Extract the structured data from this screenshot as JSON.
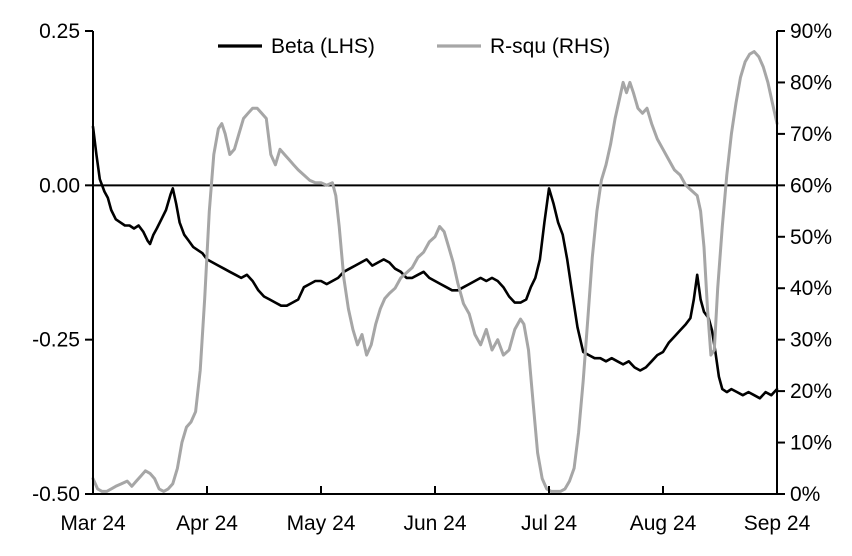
{
  "chart_data": {
    "type": "line",
    "title": "",
    "legend_position": "top-center",
    "grid": false,
    "colors": {
      "beta": "#000000",
      "rsq": "#a6a6a6",
      "axis": "#000000",
      "background": "#ffffff"
    },
    "legend": [
      {
        "label": "Beta (LHS)",
        "color": "#000000"
      },
      {
        "label": "R-squ (RHS)",
        "color": "#a6a6a6"
      }
    ],
    "x_axis": {
      "tick_labels": [
        "Mar 24",
        "Apr 24",
        "May 24",
        "Jun 24",
        "Jul 24",
        "Aug 24",
        "Sep 24"
      ],
      "tick_positions": [
        0,
        1,
        2,
        3,
        4,
        5,
        6
      ],
      "range": [
        0,
        6
      ]
    },
    "left_axis": {
      "tick_labels": [
        "0.25",
        "0.00",
        "-0.25",
        "-0.50"
      ],
      "tick_values": [
        0.25,
        0,
        -0.25,
        -0.5
      ],
      "range": [
        -0.5,
        0.25
      ]
    },
    "right_axis": {
      "tick_labels": [
        "0%",
        "10%",
        "20%",
        "30%",
        "40%",
        "50%",
        "60%",
        "70%",
        "80%",
        "90%"
      ],
      "tick_values": [
        0,
        10,
        20,
        30,
        40,
        50,
        60,
        70,
        80,
        90
      ],
      "range": [
        0,
        90
      ]
    },
    "series": [
      {
        "name": "Beta (LHS)",
        "axis": "left",
        "color": "#000000",
        "width": 2.6,
        "points": [
          [
            0.0,
            0.095
          ],
          [
            0.03,
            0.05
          ],
          [
            0.06,
            0.01
          ],
          [
            0.08,
            0.0
          ],
          [
            0.1,
            -0.01
          ],
          [
            0.13,
            -0.02
          ],
          [
            0.16,
            -0.04
          ],
          [
            0.2,
            -0.055
          ],
          [
            0.24,
            -0.06
          ],
          [
            0.28,
            -0.065
          ],
          [
            0.32,
            -0.065
          ],
          [
            0.36,
            -0.07
          ],
          [
            0.4,
            -0.065
          ],
          [
            0.44,
            -0.075
          ],
          [
            0.48,
            -0.09
          ],
          [
            0.5,
            -0.095
          ],
          [
            0.53,
            -0.08
          ],
          [
            0.56,
            -0.07
          ],
          [
            0.6,
            -0.055
          ],
          [
            0.64,
            -0.04
          ],
          [
            0.68,
            -0.015
          ],
          [
            0.7,
            -0.005
          ],
          [
            0.73,
            -0.03
          ],
          [
            0.76,
            -0.06
          ],
          [
            0.8,
            -0.08
          ],
          [
            0.84,
            -0.09
          ],
          [
            0.88,
            -0.1
          ],
          [
            0.92,
            -0.105
          ],
          [
            0.96,
            -0.11
          ],
          [
            1.0,
            -0.12
          ],
          [
            1.05,
            -0.125
          ],
          [
            1.1,
            -0.13
          ],
          [
            1.15,
            -0.135
          ],
          [
            1.2,
            -0.14
          ],
          [
            1.25,
            -0.145
          ],
          [
            1.3,
            -0.15
          ],
          [
            1.35,
            -0.145
          ],
          [
            1.4,
            -0.155
          ],
          [
            1.45,
            -0.17
          ],
          [
            1.5,
            -0.18
          ],
          [
            1.55,
            -0.185
          ],
          [
            1.6,
            -0.19
          ],
          [
            1.65,
            -0.195
          ],
          [
            1.7,
            -0.195
          ],
          [
            1.75,
            -0.19
          ],
          [
            1.8,
            -0.185
          ],
          [
            1.85,
            -0.165
          ],
          [
            1.9,
            -0.16
          ],
          [
            1.95,
            -0.155
          ],
          [
            2.0,
            -0.155
          ],
          [
            2.05,
            -0.16
          ],
          [
            2.1,
            -0.155
          ],
          [
            2.15,
            -0.15
          ],
          [
            2.2,
            -0.14
          ],
          [
            2.25,
            -0.135
          ],
          [
            2.3,
            -0.13
          ],
          [
            2.35,
            -0.125
          ],
          [
            2.4,
            -0.12
          ],
          [
            2.45,
            -0.13
          ],
          [
            2.5,
            -0.125
          ],
          [
            2.55,
            -0.12
          ],
          [
            2.6,
            -0.125
          ],
          [
            2.65,
            -0.135
          ],
          [
            2.7,
            -0.14
          ],
          [
            2.75,
            -0.15
          ],
          [
            2.8,
            -0.15
          ],
          [
            2.85,
            -0.145
          ],
          [
            2.9,
            -0.14
          ],
          [
            2.95,
            -0.15
          ],
          [
            3.0,
            -0.155
          ],
          [
            3.05,
            -0.16
          ],
          [
            3.1,
            -0.165
          ],
          [
            3.15,
            -0.17
          ],
          [
            3.2,
            -0.17
          ],
          [
            3.25,
            -0.165
          ],
          [
            3.3,
            -0.16
          ],
          [
            3.35,
            -0.155
          ],
          [
            3.4,
            -0.15
          ],
          [
            3.45,
            -0.155
          ],
          [
            3.5,
            -0.15
          ],
          [
            3.55,
            -0.155
          ],
          [
            3.6,
            -0.165
          ],
          [
            3.65,
            -0.18
          ],
          [
            3.7,
            -0.19
          ],
          [
            3.75,
            -0.19
          ],
          [
            3.8,
            -0.185
          ],
          [
            3.84,
            -0.165
          ],
          [
            3.88,
            -0.15
          ],
          [
            3.92,
            -0.12
          ],
          [
            3.96,
            -0.06
          ],
          [
            4.0,
            -0.005
          ],
          [
            4.04,
            -0.03
          ],
          [
            4.08,
            -0.06
          ],
          [
            4.12,
            -0.08
          ],
          [
            4.16,
            -0.12
          ],
          [
            4.2,
            -0.17
          ],
          [
            4.25,
            -0.23
          ],
          [
            4.3,
            -0.27
          ],
          [
            4.35,
            -0.275
          ],
          [
            4.4,
            -0.28
          ],
          [
            4.45,
            -0.28
          ],
          [
            4.5,
            -0.285
          ],
          [
            4.55,
            -0.28
          ],
          [
            4.6,
            -0.285
          ],
          [
            4.65,
            -0.29
          ],
          [
            4.7,
            -0.285
          ],
          [
            4.75,
            -0.295
          ],
          [
            4.8,
            -0.3
          ],
          [
            4.85,
            -0.295
          ],
          [
            4.9,
            -0.285
          ],
          [
            4.95,
            -0.275
          ],
          [
            5.0,
            -0.27
          ],
          [
            5.05,
            -0.255
          ],
          [
            5.1,
            -0.245
          ],
          [
            5.15,
            -0.235
          ],
          [
            5.2,
            -0.225
          ],
          [
            5.24,
            -0.215
          ],
          [
            5.27,
            -0.185
          ],
          [
            5.3,
            -0.145
          ],
          [
            5.33,
            -0.185
          ],
          [
            5.36,
            -0.205
          ],
          [
            5.4,
            -0.215
          ],
          [
            5.43,
            -0.235
          ],
          [
            5.46,
            -0.27
          ],
          [
            5.49,
            -0.31
          ],
          [
            5.52,
            -0.33
          ],
          [
            5.56,
            -0.335
          ],
          [
            5.6,
            -0.33
          ],
          [
            5.65,
            -0.335
          ],
          [
            5.7,
            -0.34
          ],
          [
            5.75,
            -0.335
          ],
          [
            5.8,
            -0.34
          ],
          [
            5.85,
            -0.345
          ],
          [
            5.9,
            -0.335
          ],
          [
            5.95,
            -0.34
          ],
          [
            6.0,
            -0.33
          ]
        ]
      },
      {
        "name": "R-squ (RHS)",
        "axis": "right",
        "color": "#a6a6a6",
        "width": 3,
        "points": [
          [
            0.0,
            3
          ],
          [
            0.04,
            1
          ],
          [
            0.08,
            0.5
          ],
          [
            0.12,
            0.5
          ],
          [
            0.16,
            1
          ],
          [
            0.2,
            1.5
          ],
          [
            0.25,
            2
          ],
          [
            0.3,
            2.5
          ],
          [
            0.34,
            1.5
          ],
          [
            0.38,
            2.5
          ],
          [
            0.42,
            3.5
          ],
          [
            0.46,
            4.5
          ],
          [
            0.5,
            4
          ],
          [
            0.54,
            3
          ],
          [
            0.58,
            1
          ],
          [
            0.62,
            0.5
          ],
          [
            0.66,
            1
          ],
          [
            0.7,
            2
          ],
          [
            0.74,
            5
          ],
          [
            0.78,
            10
          ],
          [
            0.82,
            13
          ],
          [
            0.86,
            14
          ],
          [
            0.9,
            16
          ],
          [
            0.94,
            24
          ],
          [
            0.98,
            38
          ],
          [
            1.02,
            55
          ],
          [
            1.06,
            66
          ],
          [
            1.1,
            71
          ],
          [
            1.13,
            72
          ],
          [
            1.16,
            70
          ],
          [
            1.2,
            66
          ],
          [
            1.24,
            67
          ],
          [
            1.28,
            70
          ],
          [
            1.32,
            73
          ],
          [
            1.36,
            74
          ],
          [
            1.4,
            75
          ],
          [
            1.44,
            75
          ],
          [
            1.48,
            74
          ],
          [
            1.52,
            73
          ],
          [
            1.56,
            66
          ],
          [
            1.6,
            64
          ],
          [
            1.64,
            67
          ],
          [
            1.68,
            66
          ],
          [
            1.72,
            65
          ],
          [
            1.76,
            64
          ],
          [
            1.8,
            63
          ],
          [
            1.85,
            62
          ],
          [
            1.9,
            61
          ],
          [
            1.95,
            60.5
          ],
          [
            2.0,
            60.5
          ],
          [
            2.05,
            60
          ],
          [
            2.1,
            60.5
          ],
          [
            2.13,
            58
          ],
          [
            2.16,
            52
          ],
          [
            2.2,
            42
          ],
          [
            2.24,
            36
          ],
          [
            2.28,
            32
          ],
          [
            2.32,
            29
          ],
          [
            2.36,
            31
          ],
          [
            2.4,
            27
          ],
          [
            2.44,
            29
          ],
          [
            2.48,
            33
          ],
          [
            2.52,
            36
          ],
          [
            2.56,
            38
          ],
          [
            2.6,
            39
          ],
          [
            2.65,
            40
          ],
          [
            2.7,
            42
          ],
          [
            2.75,
            43
          ],
          [
            2.8,
            44
          ],
          [
            2.85,
            46
          ],
          [
            2.9,
            47
          ],
          [
            2.95,
            49
          ],
          [
            3.0,
            50
          ],
          [
            3.04,
            52
          ],
          [
            3.08,
            51
          ],
          [
            3.12,
            48
          ],
          [
            3.16,
            45
          ],
          [
            3.2,
            41
          ],
          [
            3.25,
            37
          ],
          [
            3.3,
            35
          ],
          [
            3.35,
            31
          ],
          [
            3.4,
            29
          ],
          [
            3.45,
            32
          ],
          [
            3.5,
            28
          ],
          [
            3.55,
            30
          ],
          [
            3.6,
            27
          ],
          [
            3.65,
            28
          ],
          [
            3.7,
            32
          ],
          [
            3.75,
            34
          ],
          [
            3.78,
            33
          ],
          [
            3.82,
            28
          ],
          [
            3.86,
            18
          ],
          [
            3.9,
            8
          ],
          [
            3.94,
            3
          ],
          [
            3.98,
            1
          ],
          [
            4.02,
            0.5
          ],
          [
            4.06,
            0.5
          ],
          [
            4.1,
            0.5
          ],
          [
            4.14,
            1
          ],
          [
            4.18,
            2.5
          ],
          [
            4.22,
            5
          ],
          [
            4.26,
            12
          ],
          [
            4.3,
            22
          ],
          [
            4.34,
            34
          ],
          [
            4.38,
            46
          ],
          [
            4.42,
            55
          ],
          [
            4.46,
            61
          ],
          [
            4.5,
            64
          ],
          [
            4.54,
            68
          ],
          [
            4.58,
            73
          ],
          [
            4.62,
            77
          ],
          [
            4.65,
            80
          ],
          [
            4.68,
            78
          ],
          [
            4.71,
            80
          ],
          [
            4.74,
            78
          ],
          [
            4.78,
            75
          ],
          [
            4.82,
            74
          ],
          [
            4.86,
            75
          ],
          [
            4.9,
            72
          ],
          [
            4.95,
            69
          ],
          [
            5.0,
            67
          ],
          [
            5.05,
            65
          ],
          [
            5.1,
            63
          ],
          [
            5.15,
            62
          ],
          [
            5.2,
            60
          ],
          [
            5.25,
            59
          ],
          [
            5.3,
            58
          ],
          [
            5.33,
            55
          ],
          [
            5.36,
            48
          ],
          [
            5.39,
            36
          ],
          [
            5.42,
            27
          ],
          [
            5.45,
            28
          ],
          [
            5.48,
            40
          ],
          [
            5.52,
            52
          ],
          [
            5.56,
            62
          ],
          [
            5.6,
            70
          ],
          [
            5.64,
            76
          ],
          [
            5.68,
            81
          ],
          [
            5.72,
            84
          ],
          [
            5.76,
            85.5
          ],
          [
            5.8,
            86
          ],
          [
            5.84,
            85
          ],
          [
            5.88,
            83
          ],
          [
            5.92,
            80
          ],
          [
            5.96,
            76
          ],
          [
            6.0,
            72
          ]
        ]
      }
    ]
  }
}
